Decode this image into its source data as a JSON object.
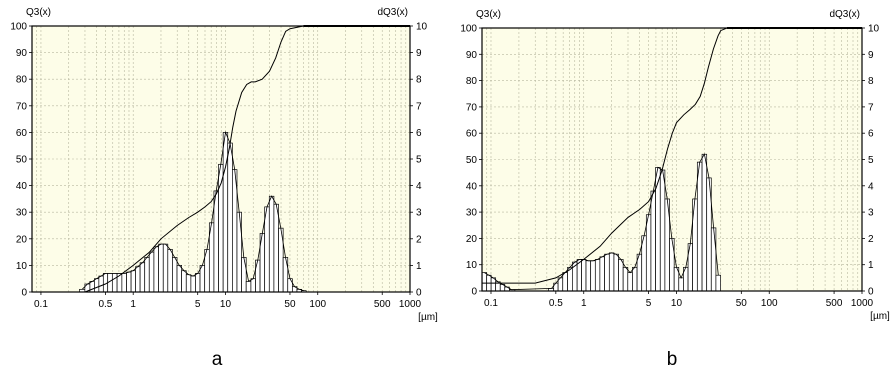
{
  "chart_data": [
    {
      "type": "bar",
      "caption": "a",
      "ylabel_left": "Q3(x)",
      "ylabel_right": "dQ3(x)",
      "xlabel": "[µm]",
      "x_scale": "log",
      "xlim": [
        0.08,
        1000
      ],
      "ylim_left": [
        0,
        100
      ],
      "ylim_right": [
        0,
        10
      ],
      "x_ticks": [
        {
          "v": 0.1,
          "label": "0.1"
        },
        {
          "v": 0.5,
          "label": "0.5"
        },
        {
          "v": 1,
          "label": "1"
        },
        {
          "v": 5,
          "label": "5"
        },
        {
          "v": 10,
          "label": "10"
        },
        {
          "v": 50,
          "label": "50"
        },
        {
          "v": 100,
          "label": "100"
        },
        {
          "v": 500,
          "label": "500"
        },
        {
          "v": 1000,
          "label": "1000"
        }
      ],
      "y_ticks_left": [
        "0",
        "10",
        "20",
        "30",
        "40",
        "50",
        "60",
        "70",
        "80",
        "90",
        "100"
      ],
      "y_ticks_right": [
        "0",
        "1",
        "2",
        "3",
        "4",
        "5",
        "6",
        "7",
        "8",
        "9",
        "10"
      ],
      "grid": true,
      "background": "#fdfde8",
      "density_series": {
        "name": "dQ3(x)",
        "x": [
          0.28,
          0.32,
          0.36,
          0.4,
          0.45,
          0.5,
          0.56,
          0.63,
          0.71,
          0.8,
          0.9,
          1.0,
          1.12,
          1.26,
          1.41,
          1.58,
          1.78,
          2.0,
          2.24,
          2.51,
          2.82,
          3.16,
          3.55,
          3.98,
          4.47,
          5.0,
          5.62,
          6.31,
          7.08,
          7.94,
          8.91,
          10.0,
          11.2,
          12.6,
          14.1,
          15.8,
          17.8,
          20.0,
          22.4,
          25.1,
          28.2,
          31.6,
          35.5,
          39.8,
          44.7,
          50.1,
          56.2,
          63.1,
          70.8
        ],
        "y": [
          0.1,
          0.3,
          0.4,
          0.5,
          0.6,
          0.7,
          0.7,
          0.7,
          0.7,
          0.7,
          0.75,
          0.8,
          0.95,
          1.1,
          1.3,
          1.5,
          1.7,
          1.8,
          1.8,
          1.6,
          1.3,
          1.0,
          0.8,
          0.65,
          0.6,
          0.7,
          1.0,
          1.6,
          2.6,
          3.8,
          4.8,
          6.0,
          5.6,
          4.6,
          3.0,
          1.3,
          0.4,
          0.5,
          1.2,
          2.2,
          3.2,
          3.6,
          3.3,
          2.4,
          1.3,
          0.5,
          0.2,
          0.1,
          0.05
        ]
      },
      "cumulative_series": {
        "name": "Q3(x)",
        "x": [
          0.3,
          0.5,
          0.7,
          1.0,
          1.5,
          2.0,
          3.0,
          4.0,
          5.0,
          6.0,
          7.0,
          8.0,
          9.0,
          10.0,
          11.0,
          12.0,
          13.0,
          15.0,
          17.0,
          19.0,
          21.0,
          25.0,
          30.0,
          35.0,
          40.0,
          45.0,
          50.0,
          70.0,
          100.0,
          200.0,
          500.0,
          1000.0
        ],
        "y": [
          0,
          3,
          6,
          10,
          15,
          20,
          25,
          28,
          30,
          32,
          34,
          37,
          41,
          47,
          54,
          62,
          68,
          75,
          78,
          79,
          79,
          80,
          83,
          88,
          94,
          98,
          99,
          100,
          100,
          100,
          100,
          100
        ]
      }
    },
    {
      "type": "bar",
      "caption": "b",
      "ylabel_left": "Q3(x)",
      "ylabel_right": "dQ3(x)",
      "xlabel": "[µm]",
      "x_scale": "log",
      "xlim": [
        0.08,
        1000
      ],
      "ylim_left": [
        0,
        100
      ],
      "ylim_right": [
        0,
        10
      ],
      "x_ticks": [
        {
          "v": 0.1,
          "label": "0.1"
        },
        {
          "v": 0.5,
          "label": "0.5"
        },
        {
          "v": 1,
          "label": "1"
        },
        {
          "v": 5,
          "label": "5"
        },
        {
          "v": 10,
          "label": "10"
        },
        {
          "v": 50,
          "label": "50"
        },
        {
          "v": 100,
          "label": "100"
        },
        {
          "v": 500,
          "label": "500"
        },
        {
          "v": 1000,
          "label": "1000"
        }
      ],
      "y_ticks_left": [
        "0",
        "10",
        "20",
        "30",
        "40",
        "50",
        "60",
        "70",
        "80",
        "90",
        "100"
      ],
      "y_ticks_right": [
        "0",
        "1",
        "2",
        "3",
        "4",
        "5",
        "6",
        "7",
        "8",
        "9",
        "10"
      ],
      "grid": true,
      "background": "#fdfde8",
      "density_series": {
        "name": "dQ3(x)",
        "x": [
          0.085,
          0.095,
          0.106,
          0.119,
          0.133,
          0.149,
          0.167,
          0.45,
          0.5,
          0.56,
          0.63,
          0.71,
          0.8,
          0.9,
          1.0,
          1.12,
          1.26,
          1.41,
          1.58,
          1.78,
          2.0,
          2.24,
          2.51,
          2.82,
          3.16,
          3.55,
          3.98,
          4.47,
          5.0,
          5.62,
          6.31,
          7.08,
          7.94,
          8.91,
          10.0,
          11.2,
          12.6,
          14.1,
          15.8,
          17.8,
          20.0,
          22.4,
          25.1,
          28.2
        ],
        "y": [
          0.7,
          0.6,
          0.5,
          0.35,
          0.25,
          0.15,
          0.05,
          0.1,
          0.3,
          0.5,
          0.7,
          0.9,
          1.1,
          1.2,
          1.2,
          1.15,
          1.15,
          1.2,
          1.3,
          1.4,
          1.45,
          1.4,
          1.2,
          0.9,
          0.7,
          0.9,
          1.4,
          2.1,
          2.9,
          3.8,
          4.7,
          4.6,
          3.5,
          2.0,
          0.9,
          0.5,
          0.9,
          1.8,
          3.5,
          4.9,
          5.2,
          4.3,
          2.4,
          0.6
        ]
      },
      "cumulative_series": {
        "name": "Q3(x)",
        "x": [
          0.08,
          0.1,
          0.15,
          0.2,
          0.3,
          0.5,
          0.7,
          1.0,
          1.5,
          2.0,
          3.0,
          4.0,
          5.0,
          6.0,
          7.0,
          8.0,
          9.0,
          10.0,
          12.0,
          14.0,
          16.0,
          18.0,
          20.0,
          22.0,
          25.0,
          28.0,
          30.0,
          35.0,
          50.0,
          100.0,
          500.0,
          1000.0
        ],
        "y": [
          3,
          3,
          3,
          3,
          3,
          5,
          8,
          12,
          17,
          22,
          28,
          31,
          34,
          39,
          46,
          54,
          60,
          64,
          67,
          69,
          71,
          74,
          79,
          85,
          92,
          97,
          99,
          100,
          100,
          100,
          100,
          100
        ]
      }
    }
  ]
}
